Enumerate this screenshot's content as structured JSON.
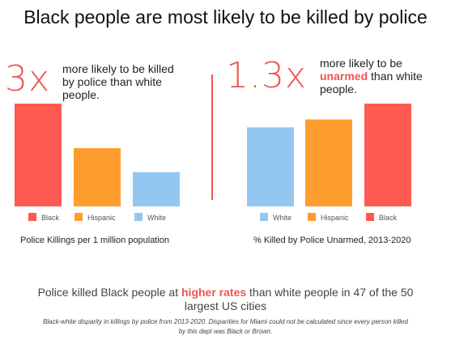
{
  "title": "Black people are most likely to be killed by police",
  "left_panel": {
    "stat": "3x",
    "text_line1": "more likely to be killed",
    "text_line2": "by police than white",
    "text_line3": "people.",
    "caption": "Police Killings per 1 million population"
  },
  "right_panel": {
    "stat": "1.3x",
    "text_line1": "more likely to be",
    "text_highlight": "unarmed",
    "text_rest": " than white",
    "text_line3": "people.",
    "caption": "% Killed by Police Unarmed, 2013-2020"
  },
  "summary": {
    "pre": "Police killed Black people at ",
    "highlight": "higher rates",
    "post": " than white people in 47 of the 50 largest US cities"
  },
  "footnote": "Black-white disparity in killings by police from 2013-2020. Disparities for Miami could not be calculated since every person killed by this dept was Black or Brown.",
  "colors": {
    "black": "#ff5a52",
    "hispanic": "#ff9d2e",
    "white": "#94c6f2",
    "accent": "#ef5550"
  },
  "chart_data": [
    {
      "type": "bar",
      "categories": [
        "Black",
        "Hispanic",
        "White"
      ],
      "values": [
        3.0,
        1.7,
        1.0
      ],
      "ylim": [
        0,
        3.0
      ],
      "xlabel": "Police Killings per 1 million population",
      "legend_position": "bottom",
      "grid": false
    },
    {
      "type": "bar",
      "categories": [
        "White",
        "Hispanic",
        "Black"
      ],
      "values": [
        1.0,
        1.1,
        1.3
      ],
      "ylim": [
        0,
        1.3
      ],
      "xlabel": "% Killed by Police Unarmed, 2013-2020",
      "legend_position": "bottom",
      "grid": false
    }
  ]
}
